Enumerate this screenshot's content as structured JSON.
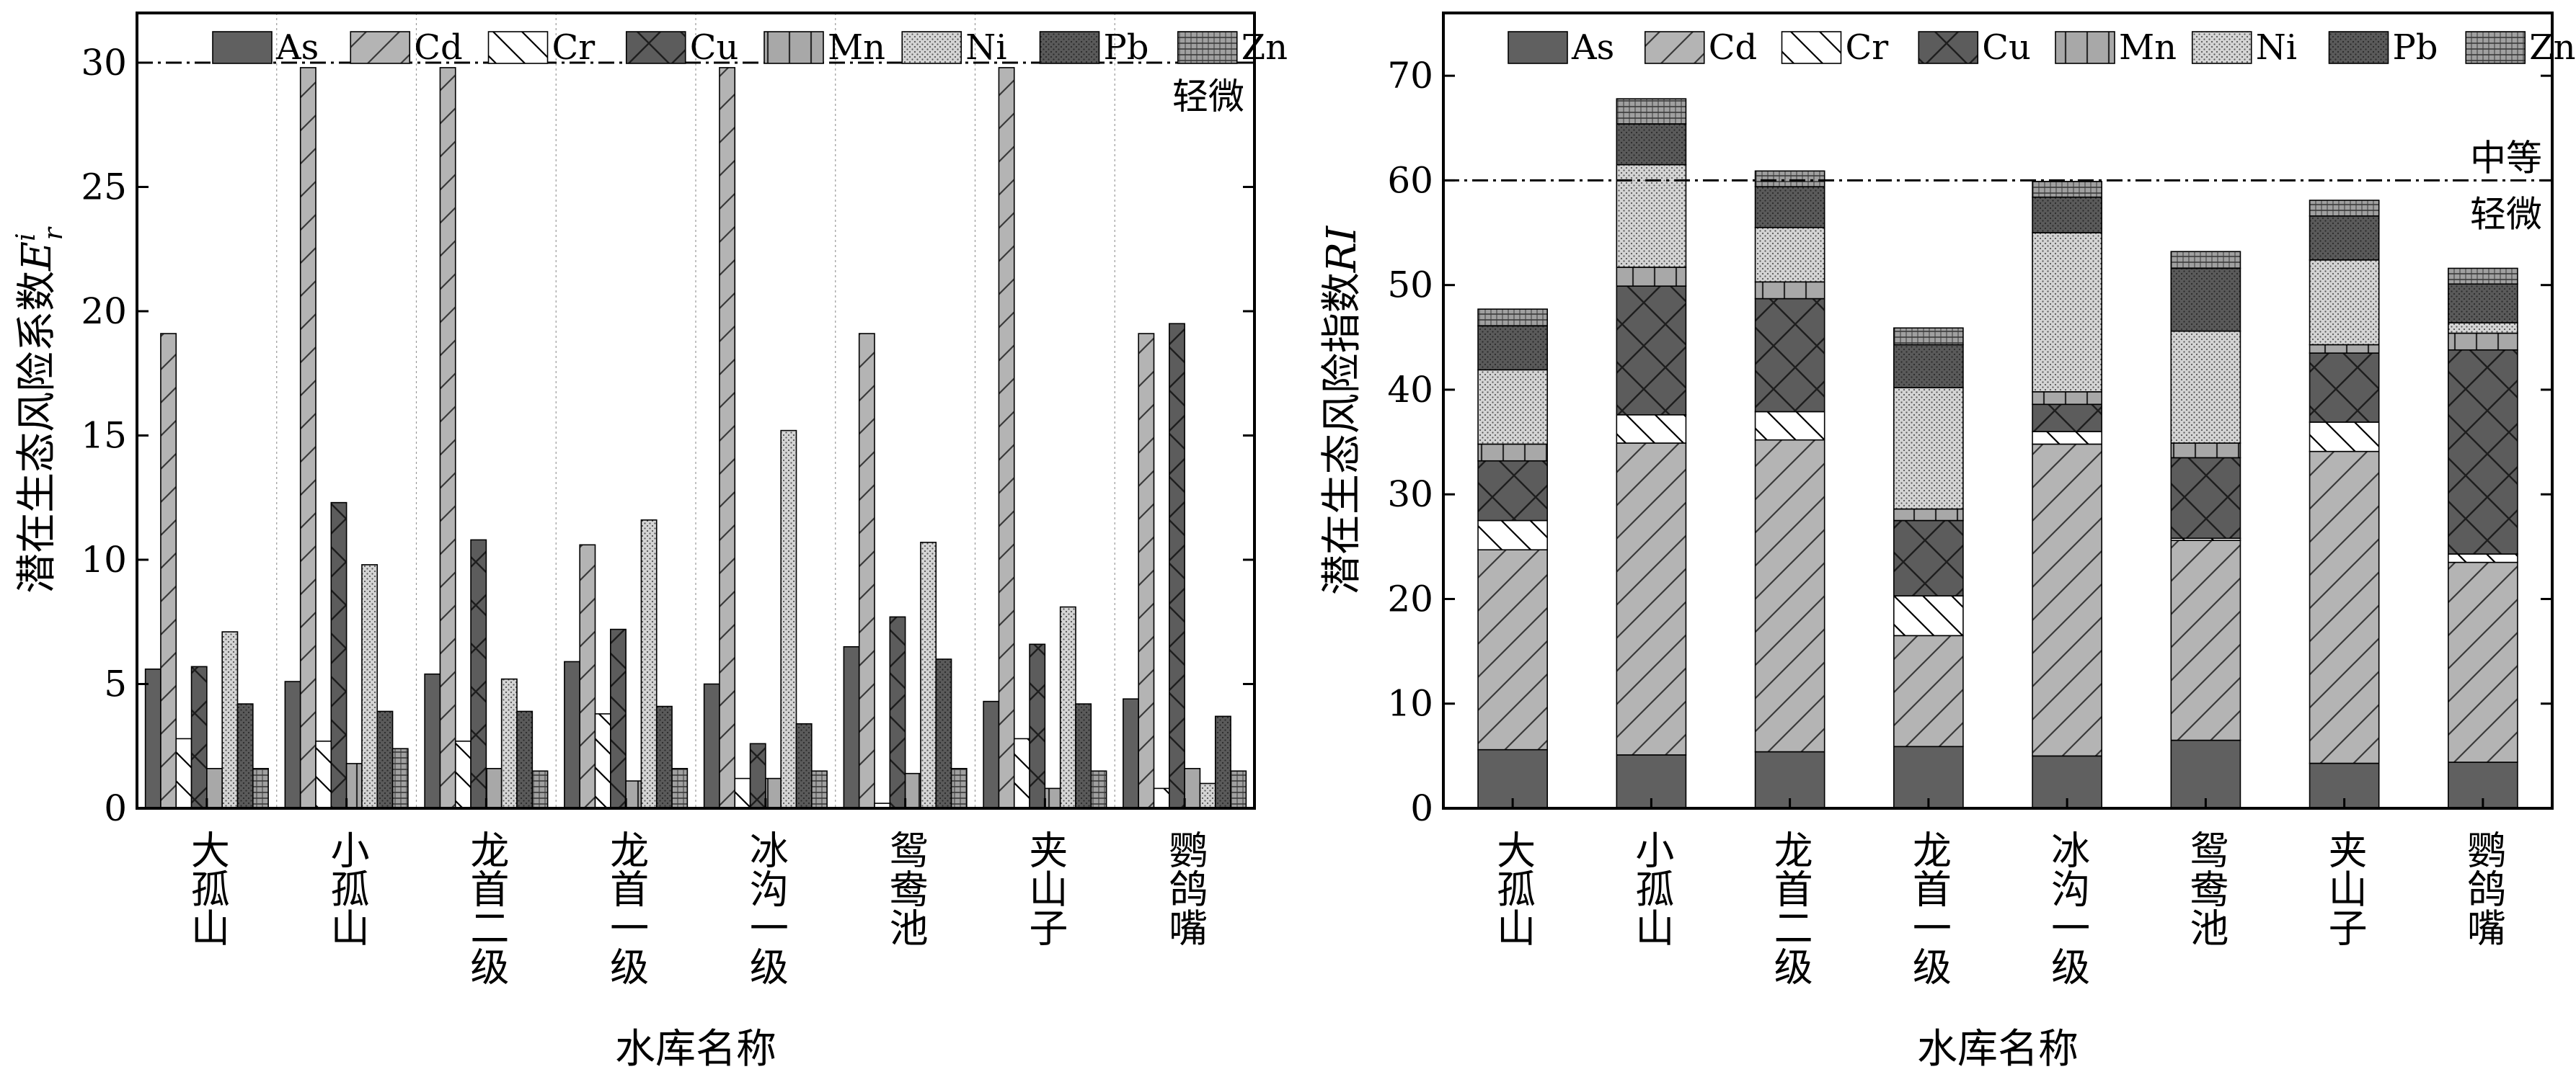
{
  "chart_data": [
    {
      "type": "bar",
      "ylabel_main": "潜在生态风险系数",
      "ylabel_sym": "E",
      "ylabel_sup": "i",
      "ylabel_sub": "r",
      "xlabel": "水库名称",
      "ylim": [
        0,
        32
      ],
      "yticks": [
        0,
        5,
        10,
        15,
        20,
        25,
        30
      ],
      "grid": "vertical dotted separators",
      "legend_position": "top",
      "threshold": {
        "value": 30,
        "label_above": "",
        "label_below": "轻微"
      },
      "categories": [
        "大孤山",
        "小孤山",
        "龙首二级",
        "龙首一级",
        "冰沟一级",
        "鸳鸯池",
        "夹山子",
        "鹦鸽嘴"
      ],
      "series": [
        {
          "name": "As",
          "values": [
            5.6,
            5.1,
            5.4,
            5.9,
            5.0,
            6.5,
            4.3,
            4.4
          ]
        },
        {
          "name": "Cd",
          "values": [
            19.1,
            29.8,
            29.8,
            10.6,
            29.8,
            19.1,
            29.8,
            19.1
          ]
        },
        {
          "name": "Cr",
          "values": [
            2.8,
            2.7,
            2.7,
            3.8,
            1.2,
            0.2,
            2.8,
            0.8
          ]
        },
        {
          "name": "Cu",
          "values": [
            5.7,
            12.3,
            10.8,
            7.2,
            2.6,
            7.7,
            6.6,
            19.5
          ]
        },
        {
          "name": "Mn",
          "values": [
            1.6,
            1.8,
            1.6,
            1.1,
            1.2,
            1.4,
            0.8,
            1.6
          ]
        },
        {
          "name": "Ni",
          "values": [
            7.1,
            9.8,
            5.2,
            11.6,
            15.2,
            10.7,
            8.1,
            1.0
          ]
        },
        {
          "name": "Pb",
          "values": [
            4.2,
            3.9,
            3.9,
            4.1,
            3.4,
            6.0,
            4.2,
            3.7
          ]
        },
        {
          "name": "Zn",
          "values": [
            1.6,
            2.4,
            1.5,
            1.6,
            1.5,
            1.6,
            1.5,
            1.5
          ]
        }
      ]
    },
    {
      "type": "bar",
      "stacked": true,
      "ylabel_main": "潜在生态风险指数",
      "ylabel_sym": "RI",
      "xlabel": "水库名称",
      "ylim": [
        0,
        76
      ],
      "yticks": [
        0,
        10,
        20,
        30,
        40,
        50,
        60,
        70
      ],
      "legend_position": "top",
      "threshold": {
        "value": 60,
        "label_above": "中等",
        "label_below": "轻微"
      },
      "categories": [
        "大孤山",
        "小孤山",
        "龙首二级",
        "龙首一级",
        "冰沟一级",
        "鸳鸯池",
        "夹山子",
        "鹦鸽嘴"
      ],
      "series": [
        {
          "name": "As",
          "values": [
            5.6,
            5.1,
            5.4,
            5.9,
            5.0,
            6.5,
            4.3,
            4.4
          ]
        },
        {
          "name": "Cd",
          "values": [
            19.1,
            29.8,
            29.8,
            10.6,
            29.8,
            19.1,
            29.8,
            19.1
          ]
        },
        {
          "name": "Cr",
          "values": [
            2.8,
            2.7,
            2.7,
            3.8,
            1.2,
            0.2,
            2.8,
            0.8
          ]
        },
        {
          "name": "Cu",
          "values": [
            5.7,
            12.3,
            10.8,
            7.2,
            2.6,
            7.7,
            6.6,
            19.5
          ]
        },
        {
          "name": "Mn",
          "values": [
            1.6,
            1.8,
            1.6,
            1.1,
            1.2,
            1.4,
            0.8,
            1.6
          ]
        },
        {
          "name": "Ni",
          "values": [
            7.1,
            9.8,
            5.2,
            11.6,
            15.2,
            10.7,
            8.1,
            1.0
          ]
        },
        {
          "name": "Pb",
          "values": [
            4.2,
            3.9,
            3.9,
            4.1,
            3.4,
            6.0,
            4.2,
            3.7
          ]
        },
        {
          "name": "Zn",
          "values": [
            1.6,
            2.4,
            1.5,
            1.6,
            1.5,
            1.6,
            1.5,
            1.5
          ]
        }
      ]
    }
  ]
}
